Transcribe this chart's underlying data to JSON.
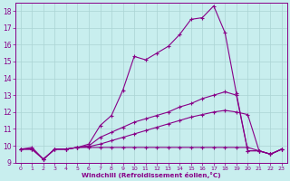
{
  "xlabel": "Windchill (Refroidissement éolien,°C)",
  "xlim": [
    -0.5,
    23.5
  ],
  "ylim": [
    9,
    18.5
  ],
  "yticks": [
    9,
    10,
    11,
    12,
    13,
    14,
    15,
    16,
    17,
    18
  ],
  "xticks": [
    0,
    1,
    2,
    3,
    4,
    5,
    6,
    7,
    8,
    9,
    10,
    11,
    12,
    13,
    14,
    15,
    16,
    17,
    18,
    19,
    20,
    21,
    22,
    23
  ],
  "bg_color": "#c8eeee",
  "grid_color": "#aad4d4",
  "line_color": "#880088",
  "lines": [
    {
      "x": [
        0,
        1,
        2,
        3,
        4,
        5,
        6,
        7,
        8,
        9,
        10,
        11,
        12,
        13,
        14,
        15,
        16,
        17,
        18,
        19,
        20,
        21,
        22,
        23
      ],
      "y": [
        9.8,
        9.9,
        9.2,
        9.8,
        9.8,
        9.9,
        10.1,
        11.2,
        11.8,
        13.3,
        15.3,
        15.1,
        15.5,
        15.9,
        16.6,
        17.5,
        17.6,
        18.3,
        16.7,
        13.1,
        9.7,
        9.7,
        9.5,
        9.8
      ]
    },
    {
      "x": [
        0,
        1,
        2,
        3,
        4,
        5,
        6,
        7,
        8,
        9,
        10,
        11,
        12,
        13,
        14,
        15,
        16,
        17,
        18,
        19,
        20,
        21,
        22,
        23
      ],
      "y": [
        9.8,
        9.8,
        9.2,
        9.8,
        9.8,
        9.9,
        10.0,
        10.5,
        10.8,
        11.1,
        11.4,
        11.6,
        11.8,
        12.0,
        12.3,
        12.5,
        12.8,
        13.0,
        13.2,
        13.0,
        9.7,
        9.7,
        9.5,
        9.8
      ]
    },
    {
      "x": [
        0,
        1,
        2,
        3,
        4,
        5,
        6,
        7,
        8,
        9,
        10,
        11,
        12,
        13,
        14,
        15,
        16,
        17,
        18,
        19,
        20,
        21,
        22,
        23
      ],
      "y": [
        9.8,
        9.8,
        9.2,
        9.8,
        9.8,
        9.9,
        9.95,
        10.1,
        10.3,
        10.5,
        10.7,
        10.9,
        11.1,
        11.3,
        11.5,
        11.7,
        11.85,
        12.0,
        12.1,
        12.0,
        11.85,
        9.7,
        9.5,
        9.8
      ]
    },
    {
      "x": [
        0,
        1,
        2,
        3,
        4,
        5,
        6,
        7,
        8,
        9,
        10,
        11,
        12,
        13,
        14,
        15,
        16,
        17,
        18,
        19,
        20,
        21,
        22,
        23
      ],
      "y": [
        9.8,
        9.8,
        9.2,
        9.8,
        9.8,
        9.9,
        9.9,
        9.9,
        9.9,
        9.9,
        9.9,
        9.9,
        9.9,
        9.9,
        9.9,
        9.9,
        9.9,
        9.9,
        9.9,
        9.9,
        9.9,
        9.7,
        9.5,
        9.8
      ]
    }
  ]
}
